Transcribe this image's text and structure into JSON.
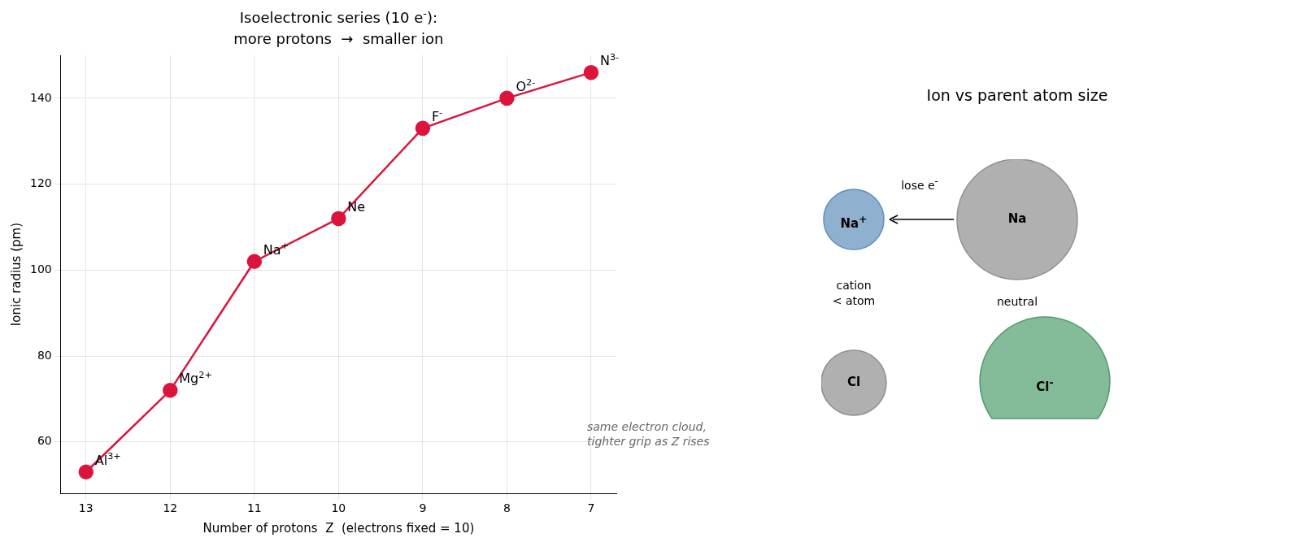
{
  "chart_data": [
    {
      "type": "line",
      "title": "Isoelectronic series (10 e$^{-}$):\nmore protons  →  smaller ion",
      "xlabel": "Number of protons  Z  (electrons fixed = 10)",
      "ylabel": "Ionic radius (pm)",
      "x": [
        13,
        12,
        11,
        10,
        9,
        8,
        7
      ],
      "series": [
        {
          "color": "#dc143c",
          "values": [
            53,
            72,
            102,
            112,
            133,
            140,
            146
          ]
        }
      ],
      "xlim": [
        13.3,
        6.7
      ],
      "xticks": [
        13,
        12,
        11,
        10,
        9,
        8,
        7
      ],
      "ylim": [
        48,
        150
      ],
      "yticks": [
        60,
        80,
        100,
        120,
        140
      ],
      "grid": true,
      "legend": false,
      "marker": "circle",
      "line_style": "solid",
      "annotations": [
        {
          "text": "Al$^{3+}$",
          "x": 13,
          "y": 53
        },
        {
          "text": "Mg$^{2+}$",
          "x": 12,
          "y": 72
        },
        {
          "text": "Na$^{+}$",
          "x": 11,
          "y": 102
        },
        {
          "text": "Ne",
          "x": 10,
          "y": 112
        },
        {
          "text": "F$^{-}$",
          "x": 9,
          "y": 133
        },
        {
          "text": "O$^{2-}$",
          "x": 8,
          "y": 140
        },
        {
          "text": "N$^{3-}$",
          "x": 7,
          "y": 146
        },
        "same electron cloud,\ntighter grip as Z rises"
      ]
    },
    {
      "type": "other",
      "title": "Ion vs parent atom size",
      "annotations": [
        "lose e$^{-}$",
        "cation\n< atom",
        "neutral",
        "Na$^{+}$",
        "Na",
        "Cl",
        "Cl$^{-}$"
      ]
    }
  ]
}
